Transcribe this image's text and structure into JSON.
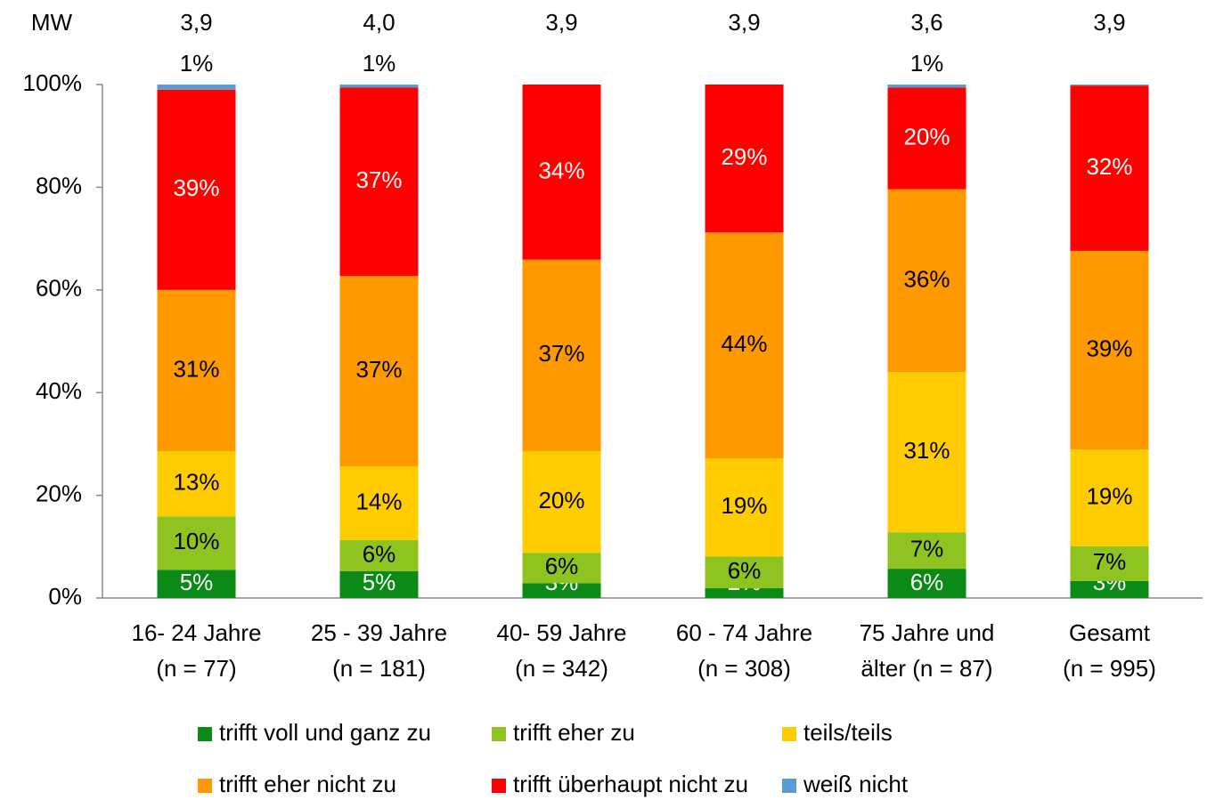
{
  "chart_data": {
    "type": "stacked_bar",
    "categories": [
      [
        "16- 24 Jahre",
        "(n = 77)"
      ],
      [
        "25 - 39 Jahre",
        "(n = 181)"
      ],
      [
        "40- 59 Jahre",
        "(n = 342)"
      ],
      [
        "60 - 74 Jahre",
        "(n = 308)"
      ],
      [
        "75 Jahre und",
        "älter (n = 87)"
      ],
      [
        "Gesamt",
        "(n = 995)"
      ]
    ],
    "series": [
      {
        "name": "trifft voll und ganz zu",
        "color": "#0b8a17",
        "label_color": "#ffffff",
        "values": [
          5.5,
          5.2,
          2.9,
          1.9,
          5.7,
          3.3
        ],
        "value_labels": [
          "5%",
          "5%",
          "3%",
          "2%",
          "6%",
          "3%"
        ]
      },
      {
        "name": "trifft eher zu",
        "color": "#8fc31f",
        "label_color": "#000000",
        "values": [
          10.4,
          6.1,
          5.9,
          6.2,
          7.1,
          6.8
        ],
        "value_labels": [
          "10%",
          "6%",
          "6%",
          "6%",
          "7%",
          "7%"
        ]
      },
      {
        "name": "teils/teils",
        "color": "#ffcc00",
        "label_color": "#000000",
        "values": [
          12.7,
          14.3,
          19.8,
          19.1,
          31.2,
          18.8
        ],
        "value_labels": [
          "13%",
          "14%",
          "20%",
          "19%",
          "31%",
          "19%"
        ]
      },
      {
        "name": "trifft eher nicht zu",
        "color": "#ff9900",
        "label_color": "#000000",
        "values": [
          31.4,
          37.1,
          37.3,
          44.0,
          35.6,
          38.7
        ],
        "value_labels": [
          "31%",
          "37%",
          "37%",
          "44%",
          "36%",
          "39%"
        ]
      },
      {
        "name": "trifft überhaupt nicht zu",
        "color": "#ff0000",
        "label_color": "#ffffff",
        "values": [
          39.0,
          36.7,
          34.1,
          28.8,
          19.8,
          32.2
        ],
        "value_labels": [
          "39%",
          "37%",
          "34%",
          "29%",
          "20%",
          "32%"
        ]
      },
      {
        "name": "weiß nicht",
        "color": "#5b9bd5",
        "label_color": "#000000",
        "values": [
          1.0,
          0.6,
          0,
          0,
          0.6,
          0.2
        ],
        "value_labels": [
          "1%",
          "1%",
          null,
          null,
          "1%",
          null
        ]
      }
    ],
    "mw": {
      "label": "MW",
      "values": [
        3.9,
        4.0,
        3.9,
        3.9,
        3.6,
        3.9
      ],
      "value_labels": [
        "3,9",
        "4,0",
        "3,9",
        "3,9",
        "3,6",
        "3,9"
      ]
    },
    "ylim": [
      0,
      100
    ],
    "yticks": [
      {
        "value": 0,
        "label": "0%"
      },
      {
        "value": 20,
        "label": "20%"
      },
      {
        "value": 40,
        "label": "40%"
      },
      {
        "value": 60,
        "label": "60%"
      },
      {
        "value": 80,
        "label": "80%"
      },
      {
        "value": 100,
        "label": "100%"
      }
    ]
  }
}
